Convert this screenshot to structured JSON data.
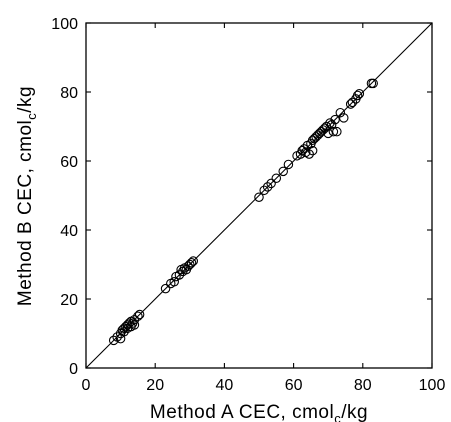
{
  "chart_data": {
    "type": "scatter",
    "title": "",
    "xlabel": {
      "pre": "Method A CEC, cmol",
      "sub": "c",
      "post": "/kg"
    },
    "ylabel": {
      "pre": "Method B CEC, cmol",
      "sub": "c",
      "post": "/kg"
    },
    "xlim": [
      0,
      100
    ],
    "ylim": [
      0,
      100
    ],
    "xticks": [
      0,
      20,
      40,
      60,
      80,
      100
    ],
    "yticks": [
      0,
      20,
      40,
      60,
      80,
      100
    ],
    "grid": false,
    "reference_line": {
      "type": "1:1",
      "from": [
        0,
        0
      ],
      "to": [
        100,
        100
      ]
    },
    "marker": "open-circle",
    "points": [
      [
        8,
        8
      ],
      [
        9,
        9
      ],
      [
        10,
        8.5
      ],
      [
        10,
        10
      ],
      [
        10.5,
        11
      ],
      [
        11,
        10.5
      ],
      [
        11,
        11.5
      ],
      [
        11.5,
        12
      ],
      [
        12,
        11.5
      ],
      [
        12,
        12.5
      ],
      [
        12.5,
        13
      ],
      [
        13,
        12
      ],
      [
        13,
        13.5
      ],
      [
        13.5,
        13
      ],
      [
        14,
        14
      ],
      [
        14,
        12.5
      ],
      [
        15,
        15
      ],
      [
        15.5,
        15.5
      ],
      [
        23,
        23
      ],
      [
        24.5,
        24.5
      ],
      [
        25.5,
        25
      ],
      [
        26,
        26.5
      ],
      [
        27,
        27
      ],
      [
        27.5,
        28.5
      ],
      [
        28,
        28
      ],
      [
        28.5,
        29
      ],
      [
        29,
        28.5
      ],
      [
        29.5,
        29.5
      ],
      [
        30,
        30
      ],
      [
        30.5,
        30.5
      ],
      [
        31,
        31
      ],
      [
        50,
        49.5
      ],
      [
        51.5,
        51.5
      ],
      [
        52.5,
        52.5
      ],
      [
        53.5,
        53.5
      ],
      [
        55,
        55
      ],
      [
        57,
        57
      ],
      [
        58.5,
        59
      ],
      [
        61,
        61.5
      ],
      [
        62,
        62
      ],
      [
        62.5,
        63
      ],
      [
        63,
        63.5
      ],
      [
        63.5,
        62.5
      ],
      [
        64,
        64.5
      ],
      [
        64.5,
        62
      ],
      [
        65,
        65
      ],
      [
        65.5,
        66
      ],
      [
        65.5,
        63
      ],
      [
        66,
        66.5
      ],
      [
        66.5,
        67
      ],
      [
        67,
        67.5
      ],
      [
        67.5,
        68
      ],
      [
        68,
        68.5
      ],
      [
        68.5,
        69
      ],
      [
        69,
        69.5
      ],
      [
        69.5,
        70
      ],
      [
        70,
        68
      ],
      [
        70.5,
        71
      ],
      [
        71,
        70.5
      ],
      [
        71.5,
        68.5
      ],
      [
        72,
        72
      ],
      [
        72.5,
        68.5
      ],
      [
        73.5,
        74
      ],
      [
        74.5,
        72.5
      ],
      [
        76.5,
        76.5
      ],
      [
        77,
        77
      ],
      [
        78,
        78
      ],
      [
        78.5,
        79
      ],
      [
        79,
        79.5
      ],
      [
        82.5,
        82.5
      ],
      [
        83,
        82.5
      ]
    ]
  }
}
